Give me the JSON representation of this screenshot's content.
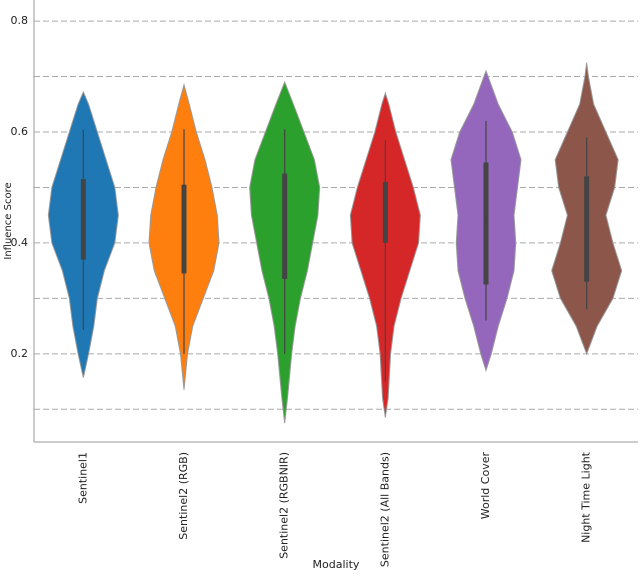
{
  "chart_data": {
    "type": "violin",
    "x_label": "Modality",
    "y_label": "Influence Score",
    "categories": [
      "Sentinel1",
      "Sentinel2 (RGB)",
      "Sentinel2 (RGBNIR)",
      "Sentinel2 (All Bands)",
      "World Cover",
      "Night Time Light"
    ],
    "ylim": [
      0.041,
      0.838
    ],
    "yticks": [
      0.2,
      0.4,
      0.6,
      0.8
    ],
    "minor_yticks": [
      0.1,
      0.3,
      0.5,
      0.7
    ],
    "grid": true,
    "violins": [
      {
        "color": "#1f77b4",
        "profile_y": [
          0.157,
          0.2,
          0.25,
          0.3,
          0.35,
          0.4,
          0.45,
          0.5,
          0.55,
          0.6,
          0.65,
          0.672
        ],
        "density": [
          0,
          0.15,
          0.3,
          0.4,
          0.6,
          0.9,
          1.0,
          0.9,
          0.65,
          0.4,
          0.15,
          0
        ],
        "q1": 0.37,
        "q3": 0.515,
        "median": 0.43,
        "whisker": [
          0.243,
          0.604
        ]
      },
      {
        "color": "#ff7f0e",
        "profile_y": [
          0.135,
          0.2,
          0.25,
          0.3,
          0.35,
          0.4,
          0.45,
          0.5,
          0.55,
          0.6,
          0.65,
          0.685
        ],
        "density": [
          0,
          0.1,
          0.25,
          0.55,
          0.85,
          1.0,
          0.95,
          0.8,
          0.6,
          0.35,
          0.15,
          0
        ],
        "q1": 0.345,
        "q3": 0.505,
        "median": 0.42,
        "whisker": [
          0.2,
          0.605
        ]
      },
      {
        "color": "#2ca02c",
        "profile_y": [
          0.075,
          0.12,
          0.2,
          0.25,
          0.3,
          0.35,
          0.4,
          0.45,
          0.5,
          0.55,
          0.6,
          0.65,
          0.69
        ],
        "density": [
          0,
          0.08,
          0.2,
          0.3,
          0.45,
          0.65,
          0.8,
          0.95,
          1.0,
          0.85,
          0.55,
          0.25,
          0
        ],
        "q1": 0.335,
        "q3": 0.525,
        "median": 0.44,
        "whisker": [
          0.2,
          0.605
        ]
      },
      {
        "color": "#d62728",
        "profile_y": [
          0.085,
          0.12,
          0.2,
          0.25,
          0.3,
          0.35,
          0.4,
          0.45,
          0.5,
          0.55,
          0.6,
          0.65,
          0.67
        ],
        "density": [
          0,
          0.08,
          0.15,
          0.25,
          0.45,
          0.7,
          0.95,
          1.0,
          0.8,
          0.55,
          0.3,
          0.1,
          0
        ],
        "q1": 0.4,
        "q3": 0.51,
        "median": 0.445,
        "whisker": [
          0.15,
          0.585
        ]
      },
      {
        "color": "#9467bd",
        "profile_y": [
          0.17,
          0.2,
          0.25,
          0.3,
          0.35,
          0.4,
          0.45,
          0.5,
          0.55,
          0.6,
          0.65,
          0.71
        ],
        "density": [
          0,
          0.15,
          0.35,
          0.6,
          0.8,
          0.85,
          0.8,
          0.9,
          1.0,
          0.75,
          0.35,
          0
        ],
        "q1": 0.325,
        "q3": 0.545,
        "median": 0.44,
        "whisker": [
          0.26,
          0.62
        ]
      },
      {
        "color": "#8c564b",
        "profile_y": [
          0.2,
          0.25,
          0.3,
          0.35,
          0.4,
          0.45,
          0.5,
          0.55,
          0.6,
          0.65,
          0.7,
          0.725
        ],
        "density": [
          0,
          0.3,
          0.75,
          1.0,
          0.75,
          0.55,
          0.8,
          0.9,
          0.55,
          0.2,
          0.05,
          0
        ],
        "q1": 0.33,
        "q3": 0.52,
        "median": 0.43,
        "whisker": [
          0.28,
          0.59
        ]
      }
    ]
  }
}
